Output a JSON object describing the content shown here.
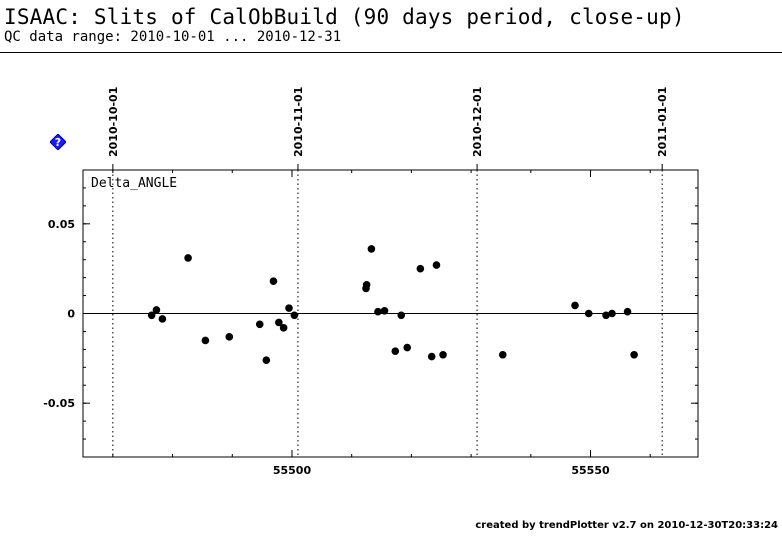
{
  "header": {
    "title": "ISAAC: Slits of CalObBuild (90 days period, close-up)",
    "subtitle": "QC data range: 2010-10-01 ... 2010-12-31"
  },
  "help_icon": {
    "name": "help-icon",
    "glyph": "?",
    "color": "#1a1aff"
  },
  "footer": {
    "text": "created by trendPlotter v2.7 on 2010-12-30T20:33:24"
  },
  "chart_data": {
    "type": "scatter",
    "panel_label": "Delta_ANGLE",
    "xlabel": "",
    "ylabel": "",
    "xlim": [
      55465,
      55568
    ],
    "ylim": [
      -0.08,
      0.08
    ],
    "x_ticks": [
      55500,
      55550
    ],
    "x_tick_labels": [
      "55500",
      "55550"
    ],
    "y_ticks": [
      0.05,
      0,
      -0.05
    ],
    "y_tick_labels": [
      "0.05",
      "0",
      "-0.05"
    ],
    "reference_line_y": 0,
    "date_markers": [
      {
        "x": 55470,
        "label": "2010-10-01"
      },
      {
        "x": 55501,
        "label": "2010-11-01"
      },
      {
        "x": 55531,
        "label": "2010-12-01"
      },
      {
        "x": 55562,
        "label": "2011-01-01"
      }
    ],
    "grid": false,
    "legend": "none",
    "point_color": "#000000",
    "points": [
      {
        "x": 55476.5,
        "y": -0.001
      },
      {
        "x": 55477.3,
        "y": 0.002
      },
      {
        "x": 55478.3,
        "y": -0.003
      },
      {
        "x": 55482.6,
        "y": 0.031
      },
      {
        "x": 55485.5,
        "y": -0.015
      },
      {
        "x": 55489.5,
        "y": -0.013
      },
      {
        "x": 55494.6,
        "y": -0.006
      },
      {
        "x": 55495.7,
        "y": -0.026
      },
      {
        "x": 55496.9,
        "y": 0.018
      },
      {
        "x": 55497.8,
        "y": -0.005
      },
      {
        "x": 55498.6,
        "y": -0.008
      },
      {
        "x": 55499.5,
        "y": 0.003
      },
      {
        "x": 55500.4,
        "y": -0.001
      },
      {
        "x": 55512.4,
        "y": 0.014
      },
      {
        "x": 55512.5,
        "y": 0.016
      },
      {
        "x": 55513.3,
        "y": 0.036
      },
      {
        "x": 55514.4,
        "y": 0.001
      },
      {
        "x": 55515.5,
        "y": 0.0015
      },
      {
        "x": 55517.3,
        "y": -0.021
      },
      {
        "x": 55518.3,
        "y": -0.001
      },
      {
        "x": 55519.3,
        "y": -0.019
      },
      {
        "x": 55521.5,
        "y": 0.025
      },
      {
        "x": 55523.4,
        "y": -0.024
      },
      {
        "x": 55524.2,
        "y": 0.027
      },
      {
        "x": 55525.3,
        "y": -0.023
      },
      {
        "x": 55535.3,
        "y": -0.023
      },
      {
        "x": 55547.4,
        "y": 0.0045
      },
      {
        "x": 55549.7,
        "y": 0.0
      },
      {
        "x": 55552.6,
        "y": -0.001
      },
      {
        "x": 55553.6,
        "y": 0.0
      },
      {
        "x": 55556.2,
        "y": 0.001
      },
      {
        "x": 55557.3,
        "y": -0.023
      }
    ]
  }
}
